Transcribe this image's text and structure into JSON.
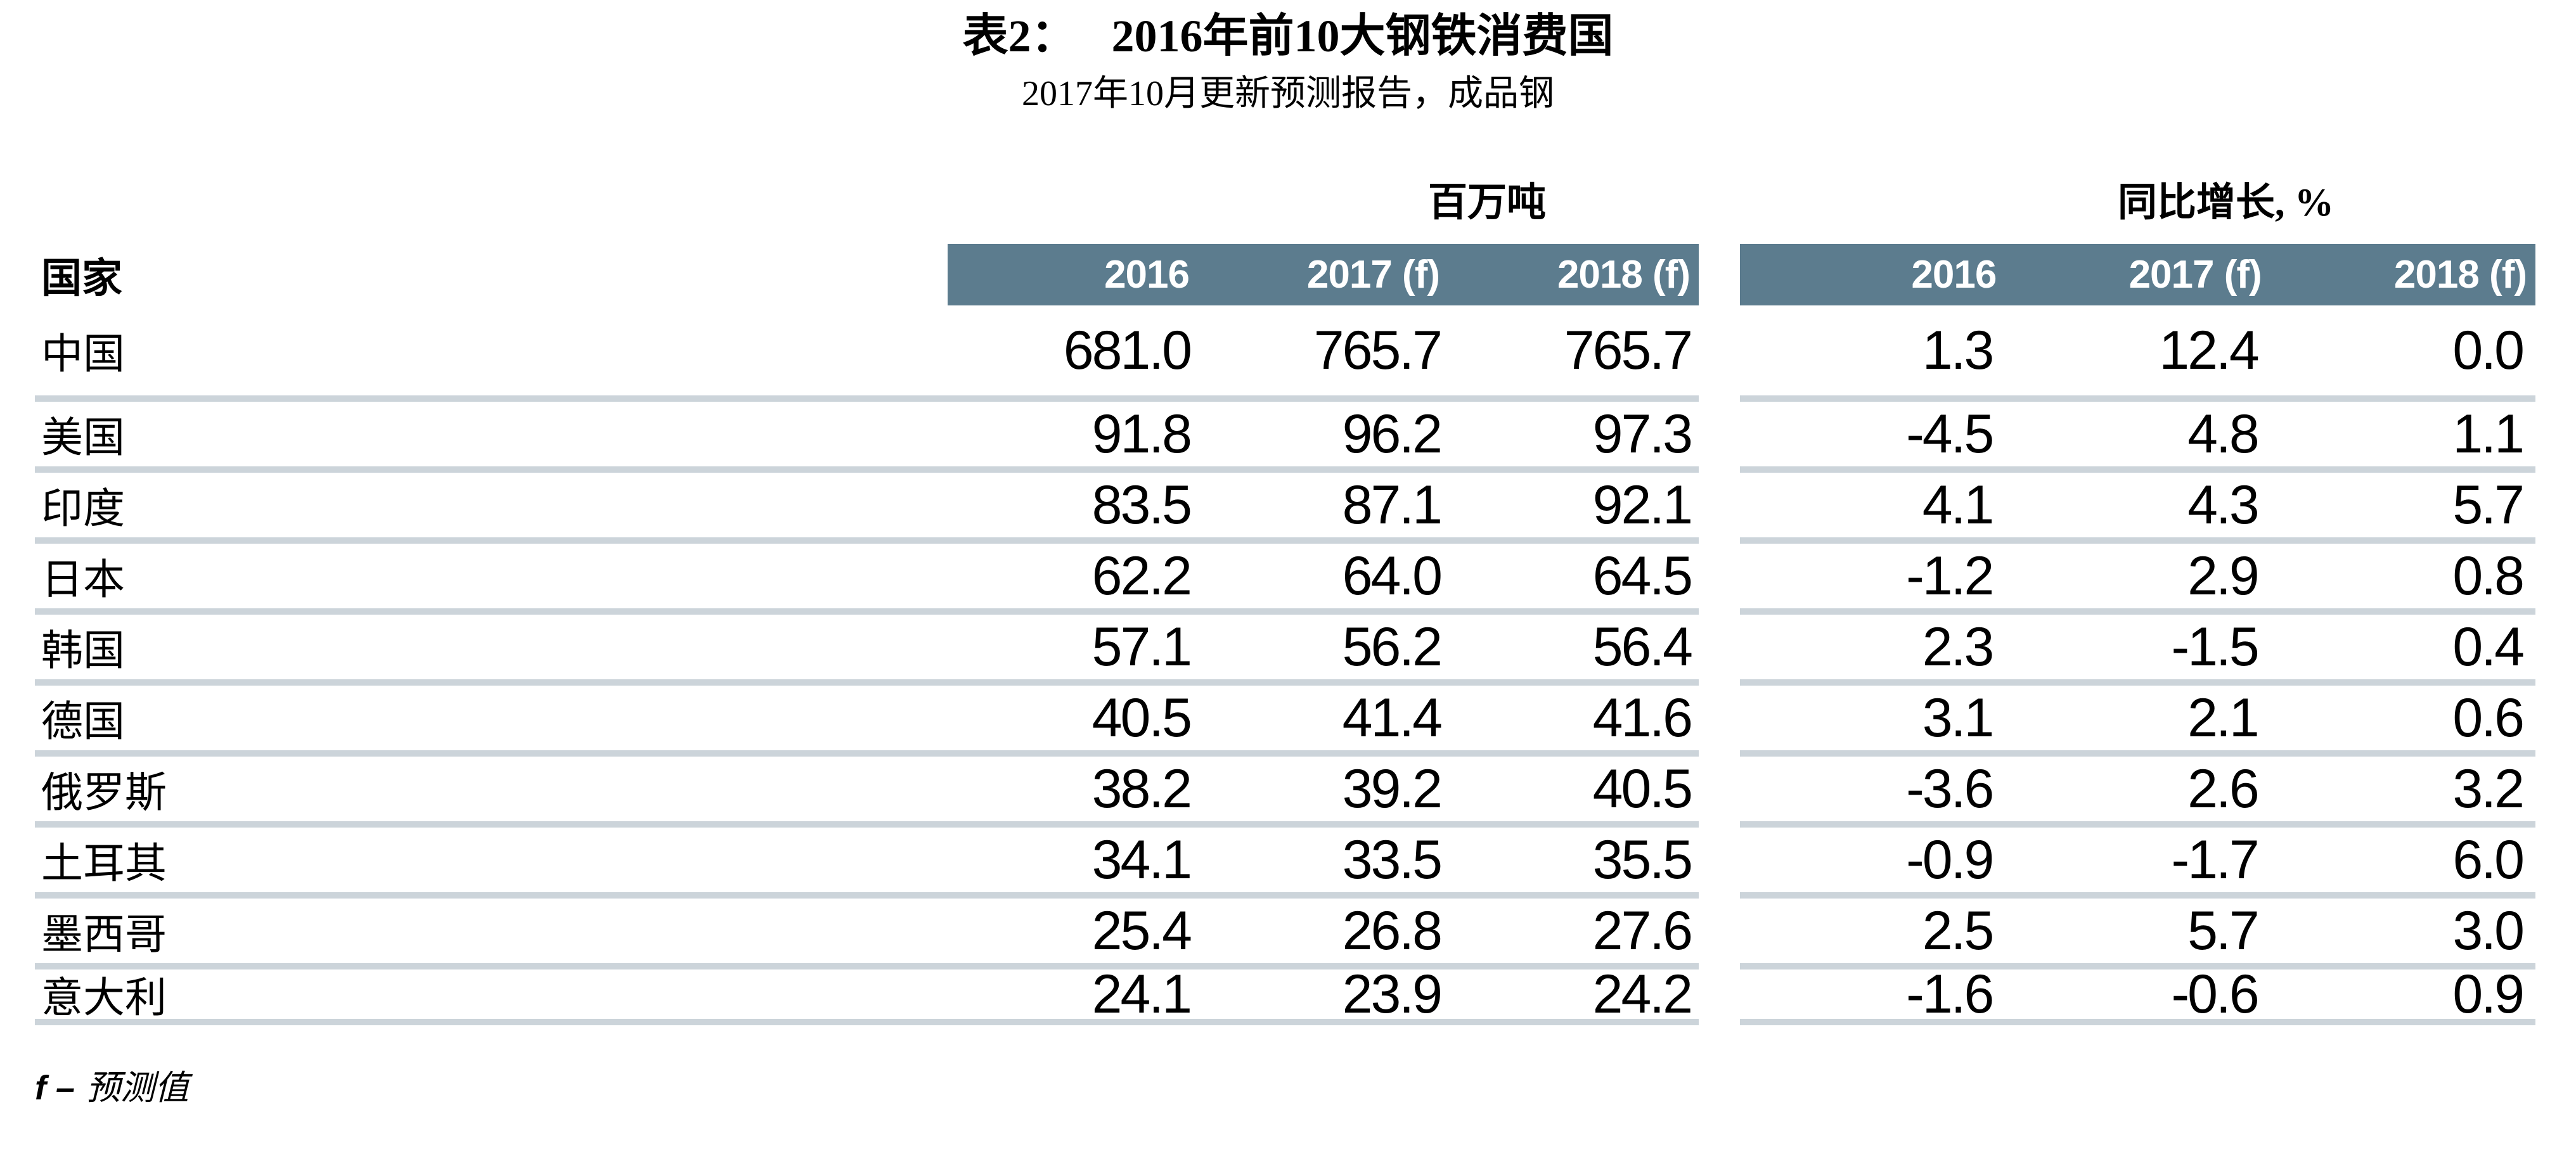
{
  "title": {
    "label": "表2：",
    "text": "2016年前10大钢铁消费国"
  },
  "subtitle": "2017年10月更新预测报告，成品钢",
  "table": {
    "country_header": "国家",
    "groups": [
      {
        "label": "百万吨",
        "columns": [
          "2016",
          "2017 (f)",
          "2018 (f)"
        ]
      },
      {
        "label": "同比增长, %",
        "columns": [
          "2016",
          "2017 (f)",
          "2018 (f)"
        ]
      }
    ],
    "rows": [
      {
        "country": "中国",
        "mt": [
          "681.0",
          "765.7",
          "765.7"
        ],
        "yoy": [
          "1.3",
          "12.4",
          "0.0"
        ]
      },
      {
        "country": "美国",
        "mt": [
          "91.8",
          "96.2",
          "97.3"
        ],
        "yoy": [
          "-4.5",
          "4.8",
          "1.1"
        ]
      },
      {
        "country": "印度",
        "mt": [
          "83.5",
          "87.1",
          "92.1"
        ],
        "yoy": [
          "4.1",
          "4.3",
          "5.7"
        ]
      },
      {
        "country": "日本",
        "mt": [
          "62.2",
          "64.0",
          "64.5"
        ],
        "yoy": [
          "-1.2",
          "2.9",
          "0.8"
        ]
      },
      {
        "country": "韩国",
        "mt": [
          "57.1",
          "56.2",
          "56.4"
        ],
        "yoy": [
          "2.3",
          "-1.5",
          "0.4"
        ]
      },
      {
        "country": "德国",
        "mt": [
          "40.5",
          "41.4",
          "41.6"
        ],
        "yoy": [
          "3.1",
          "2.1",
          "0.6"
        ]
      },
      {
        "country": "俄罗斯",
        "mt": [
          "38.2",
          "39.2",
          "40.5"
        ],
        "yoy": [
          "-3.6",
          "2.6",
          "3.2"
        ]
      },
      {
        "country": "土耳其",
        "mt": [
          "34.1",
          "33.5",
          "35.5"
        ],
        "yoy": [
          "-0.9",
          "-1.7",
          "6.0"
        ]
      },
      {
        "country": "墨西哥",
        "mt": [
          "25.4",
          "26.8",
          "27.6"
        ],
        "yoy": [
          "2.5",
          "5.7",
          "3.0"
        ]
      },
      {
        "country": "意大利",
        "mt": [
          "24.1",
          "23.9",
          "24.2"
        ],
        "yoy": [
          "-1.6",
          "-0.6",
          "0.9"
        ]
      }
    ]
  },
  "footnote": {
    "prefix": "f –",
    "label": "预测值"
  },
  "colors": {
    "band_background": "#5c7c8e",
    "band_text": "#ffffff",
    "row_separator": "#ccd4da",
    "text": "#000000",
    "page_background": "#ffffff"
  }
}
